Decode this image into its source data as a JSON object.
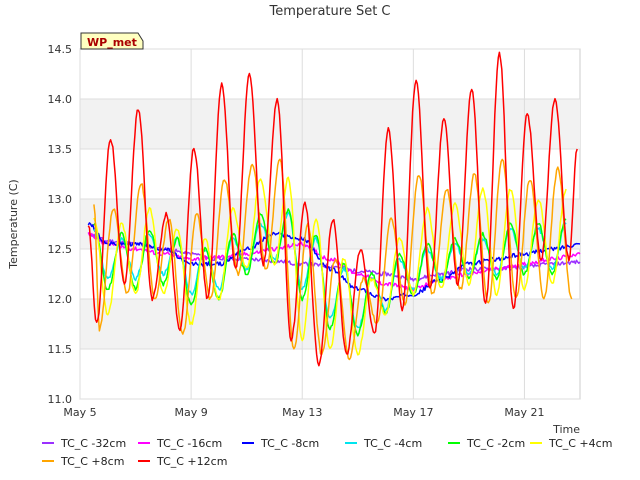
{
  "chart_data": {
    "type": "line",
    "title": "Temperature Set C",
    "ylabel": "Temperature (C)",
    "xlabel": "Time",
    "ylim": [
      11.0,
      14.5
    ],
    "xlim": [
      0,
      18
    ],
    "yticks": [
      11.0,
      11.5,
      12.0,
      12.5,
      13.0,
      13.5,
      14.0,
      14.5
    ],
    "ytick_labels": [
      "11.0",
      "11.5",
      "12.0",
      "12.5",
      "13.0",
      "13.5",
      "14.0",
      "14.5"
    ],
    "xticks": [
      0,
      4,
      8,
      12,
      16
    ],
    "xtick_labels": [
      "May 5",
      "May 9",
      "May 13",
      "May 17",
      "May 21"
    ],
    "grid": true,
    "banded_background": true,
    "legend_position": "bottom",
    "annotation": "WP_met",
    "x_units": "days since May 5",
    "series": [
      {
        "name": "TC_C -32cm",
        "color": "#9b30ff",
        "x": [
          0.3,
          1,
          2,
          3,
          4,
          5,
          6,
          7,
          8,
          9,
          10,
          11,
          12,
          13,
          14,
          15,
          16,
          17,
          18
        ],
        "y": [
          12.65,
          12.58,
          12.55,
          12.5,
          12.45,
          12.4,
          12.4,
          12.38,
          12.35,
          12.33,
          12.28,
          12.25,
          12.2,
          12.25,
          12.3,
          12.3,
          12.32,
          12.35,
          12.37
        ]
      },
      {
        "name": "TC_C -16cm",
        "color": "#ff00ff",
        "x": [
          0.3,
          1,
          2,
          3,
          4,
          5,
          6,
          7,
          8,
          9,
          10,
          11,
          12,
          13,
          14,
          15,
          16,
          17,
          18
        ],
        "y": [
          12.65,
          12.55,
          12.5,
          12.45,
          12.4,
          12.42,
          12.45,
          12.5,
          12.55,
          12.4,
          12.25,
          12.15,
          12.1,
          12.2,
          12.25,
          12.3,
          12.35,
          12.4,
          12.45
        ]
      },
      {
        "name": "TC_C -8cm",
        "color": "#0000ff",
        "x": [
          0.3,
          1,
          2,
          3,
          4,
          5,
          6,
          7,
          8,
          9,
          10,
          11,
          12,
          13,
          14,
          15,
          16,
          17,
          18
        ],
        "y": [
          12.75,
          12.55,
          12.55,
          12.5,
          12.35,
          12.35,
          12.5,
          12.65,
          12.6,
          12.3,
          12.1,
          12.0,
          12.05,
          12.2,
          12.35,
          12.4,
          12.45,
          12.5,
          12.55
        ]
      },
      {
        "name": "TC_C -4cm",
        "color": "#00e5ee",
        "peak_x": [
          0.5,
          1.5,
          2.5,
          3.5,
          4.5,
          5.5,
          6.5,
          7.5,
          8.5,
          9.5,
          10.5,
          11.5,
          12.5,
          13.5,
          14.5,
          15.5,
          16.5,
          17.5
        ],
        "peak_y": [
          12.7,
          12.6,
          12.65,
          12.6,
          12.5,
          12.6,
          12.75,
          12.85,
          12.6,
          12.3,
          12.2,
          12.4,
          12.5,
          12.55,
          12.6,
          12.7,
          12.7,
          12.75
        ],
        "trough_x": [
          1,
          2,
          3,
          4,
          5,
          6,
          7,
          8,
          9,
          10,
          11,
          12,
          13,
          14,
          15,
          16,
          17
        ],
        "trough_y": [
          12.2,
          12.2,
          12.25,
          12.05,
          12.1,
          12.3,
          12.4,
          12.1,
          11.8,
          11.7,
          11.9,
          12.1,
          12.2,
          12.25,
          12.25,
          12.3,
          12.3
        ]
      },
      {
        "name": "TC_C -2cm",
        "color": "#00ff00",
        "peak_x": [
          0.5,
          1.5,
          2.5,
          3.5,
          4.5,
          5.5,
          6.5,
          7.5,
          8.5,
          9.5,
          10.5,
          11.5,
          12.5,
          13.5,
          14.5,
          15.5,
          16.5,
          17.5
        ],
        "peak_y": [
          12.75,
          12.65,
          12.7,
          12.6,
          12.5,
          12.65,
          12.85,
          12.9,
          12.65,
          12.35,
          12.25,
          12.45,
          12.55,
          12.6,
          12.65,
          12.75,
          12.75,
          12.8
        ],
        "trough_x": [
          1,
          2,
          3,
          4,
          5,
          6,
          7,
          8,
          9,
          10,
          11,
          12,
          13,
          14,
          15,
          16,
          17
        ],
        "trough_y": [
          12.1,
          12.1,
          12.15,
          11.95,
          12.0,
          12.25,
          12.35,
          12.0,
          11.7,
          11.65,
          11.85,
          12.05,
          12.15,
          12.2,
          12.2,
          12.25,
          12.25
        ]
      },
      {
        "name": "TC_C +4cm",
        "color": "#ffff00",
        "peak_x": [
          0.5,
          1.5,
          2.5,
          3.5,
          4.5,
          5.5,
          6.5,
          7.5,
          8.5,
          9.5,
          10.5,
          11.5,
          12.5,
          13.5,
          14.5,
          15.5,
          16.5,
          17.5
        ],
        "peak_y": [
          12.8,
          12.75,
          12.9,
          12.7,
          12.6,
          12.9,
          13.2,
          13.2,
          12.8,
          12.4,
          12.2,
          12.6,
          12.9,
          12.95,
          13.1,
          13.1,
          13.0,
          13.1
        ],
        "trough_x": [
          1,
          2,
          3,
          4,
          5,
          6,
          7,
          8,
          9,
          10,
          11,
          12,
          13,
          14,
          15,
          16,
          17
        ],
        "trough_y": [
          11.85,
          12.05,
          12.05,
          11.75,
          12.0,
          12.3,
          12.35,
          11.6,
          11.5,
          11.45,
          11.85,
          12.05,
          12.1,
          12.15,
          12.05,
          12.1,
          12.15
        ]
      },
      {
        "name": "TC_C +8cm",
        "color": "#ffa500",
        "peak_x": [
          0.5,
          1.2,
          2.2,
          3.2,
          4.2,
          5.2,
          6.2,
          7.2,
          8.2,
          9.2,
          10.2,
          11.2,
          12.2,
          13.2,
          14.2,
          15.2,
          16.2,
          17.2
        ],
        "peak_y": [
          12.95,
          12.9,
          13.15,
          12.8,
          12.85,
          13.2,
          13.35,
          13.4,
          12.75,
          12.4,
          12.2,
          12.8,
          13.25,
          13.1,
          13.25,
          13.4,
          13.2,
          13.3
        ],
        "trough_x": [
          0.7,
          1.7,
          2.7,
          3.7,
          4.7,
          5.7,
          6.7,
          7.7,
          8.7,
          9.7,
          10.7,
          11.7,
          12.7,
          13.7,
          14.7,
          15.7,
          16.7,
          17.7
        ],
        "trough_y": [
          11.7,
          12.05,
          12.0,
          11.65,
          12.0,
          12.25,
          12.3,
          11.5,
          11.45,
          11.4,
          11.75,
          11.95,
          12.05,
          12.1,
          11.95,
          12.0,
          12.0,
          12.0
        ]
      },
      {
        "name": "TC_C +12cm",
        "color": "#ff0000",
        "peak_x": [
          0.3,
          1.1,
          2.1,
          3.1,
          4.1,
          5.1,
          6.1,
          7.1,
          8.1,
          9.1,
          10.1,
          11.1,
          12.1,
          13.1,
          14.1,
          15.1,
          16.1,
          17.1,
          17.9
        ],
        "peak_y": [
          12.75,
          13.6,
          13.9,
          12.85,
          13.5,
          14.15,
          14.25,
          14.0,
          12.95,
          12.8,
          12.5,
          13.7,
          14.2,
          13.8,
          14.1,
          14.45,
          13.85,
          14.0,
          13.5
        ],
        "trough_x": [
          0.6,
          1.6,
          2.6,
          3.6,
          4.6,
          5.6,
          6.6,
          7.6,
          8.6,
          9.6,
          10.6,
          11.6,
          12.6,
          13.6,
          14.6,
          15.6,
          16.6,
          17.6
        ],
        "trough_y": [
          11.75,
          12.15,
          12.0,
          11.7,
          12.0,
          12.3,
          12.35,
          11.6,
          11.35,
          11.45,
          11.65,
          11.9,
          12.1,
          12.15,
          11.95,
          11.9,
          12.4,
          12.4
        ]
      }
    ]
  }
}
